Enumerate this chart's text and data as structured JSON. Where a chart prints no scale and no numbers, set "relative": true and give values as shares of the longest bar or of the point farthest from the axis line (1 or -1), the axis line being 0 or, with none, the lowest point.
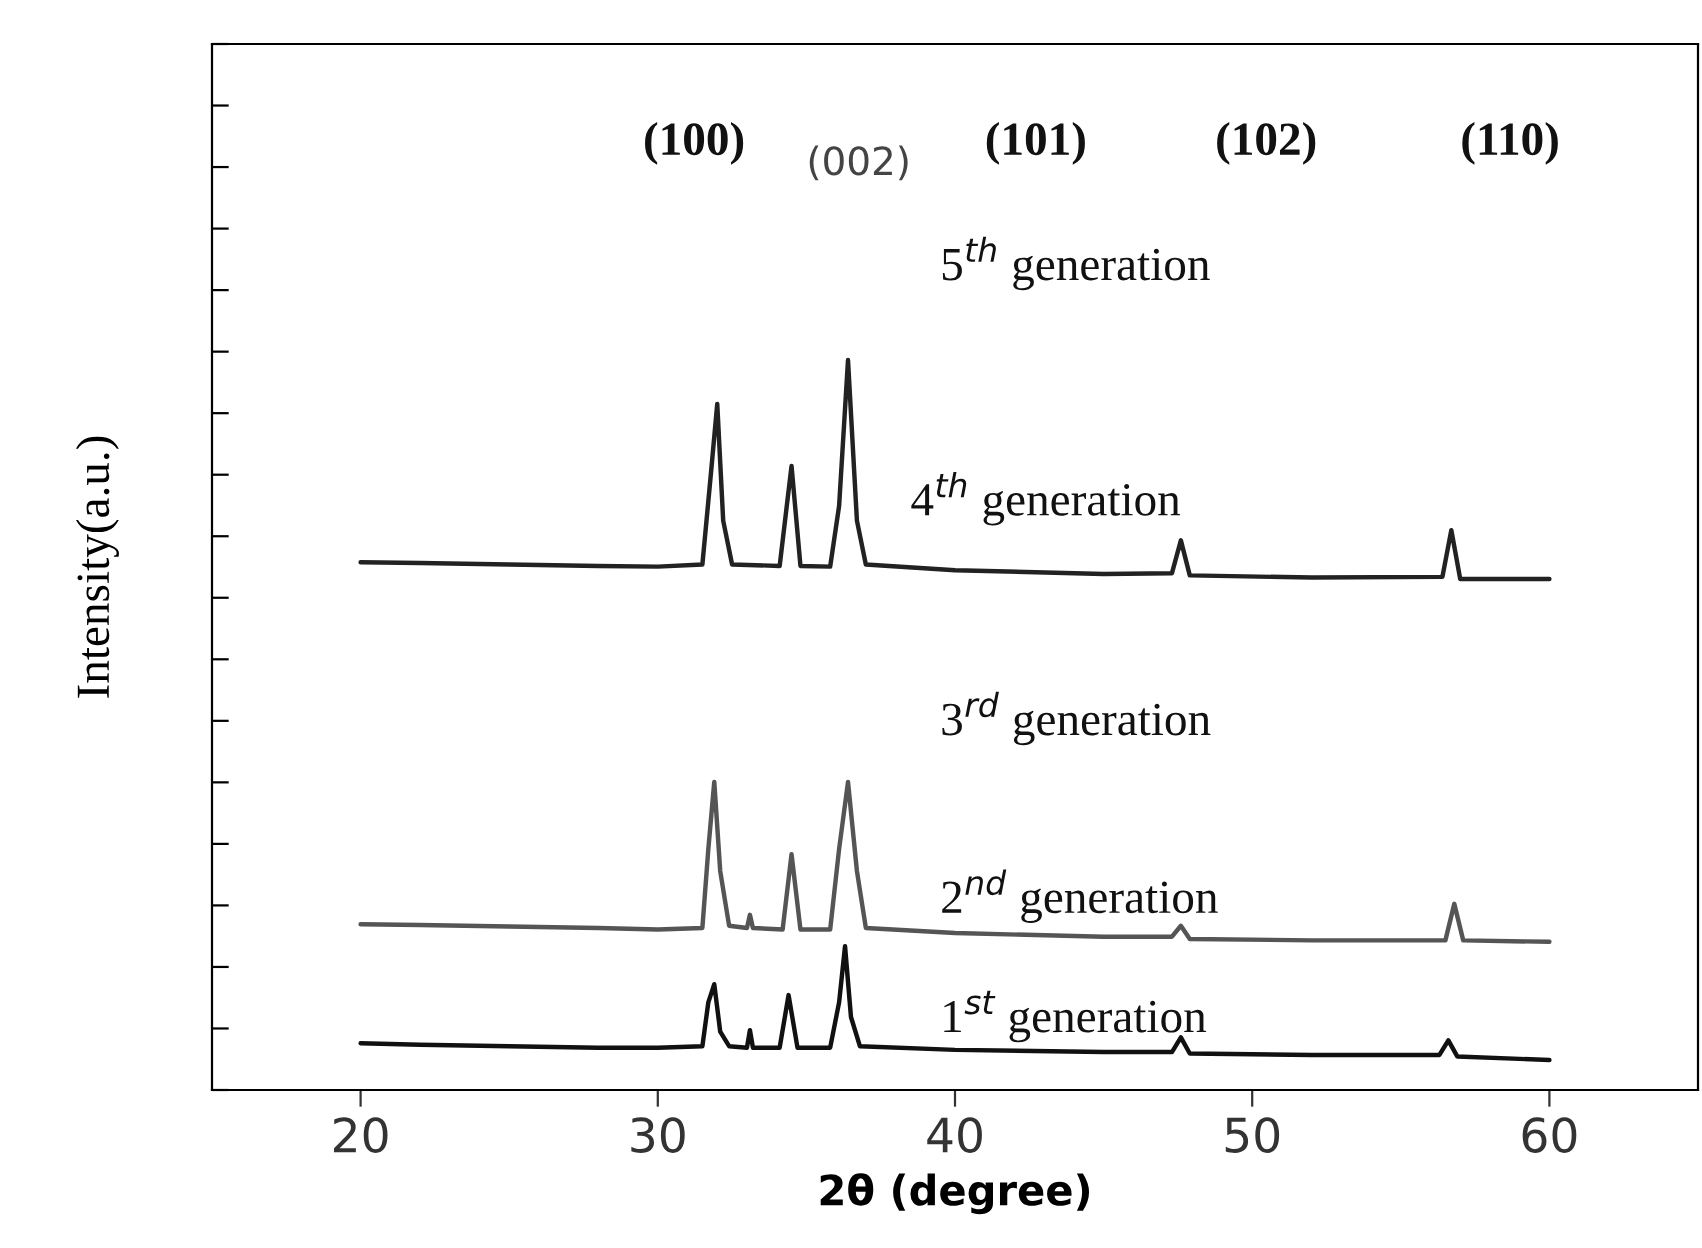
{
  "chart_data": {
    "type": "line",
    "relative": true,
    "xlabel": "2θ (degree)",
    "ylabel": "Intensity(a.u.)",
    "xlim": [
      15,
      65
    ],
    "xticks": [
      20,
      30,
      40,
      50,
      60
    ],
    "tick_labels": "x",
    "grid": false,
    "legend": false,
    "marker": "none",
    "line_style": "solid",
    "annotations": [
      "(100)",
      "(002)",
      "(101)",
      "(102)",
      "(110)",
      "5$^{th}$ generation",
      "4$^{th}$ generation",
      "3$^{rd}$ generation",
      "2$^{nd}$ generation",
      "1$^{st}$ generation"
    ],
    "series": [
      {
        "color": "#111111",
        "x": [
          20,
          22,
          25,
          28,
          30,
          31.5,
          31.7,
          31.9,
          32.1,
          32.4,
          33.0,
          33.1,
          33.2,
          34.1,
          34.4,
          34.7,
          35.8,
          36.1,
          36.3,
          36.5,
          36.8,
          40,
          45,
          47.3,
          47.6,
          47.9,
          52,
          56.3,
          56.6,
          56.9,
          60
        ],
        "values": [
          0.064,
          0.062,
          0.06,
          0.058,
          0.058,
          0.06,
          0.12,
          0.145,
          0.08,
          0.06,
          0.058,
          0.082,
          0.058,
          0.058,
          0.13,
          0.058,
          0.058,
          0.12,
          0.197,
          0.1,
          0.06,
          0.055,
          0.052,
          0.052,
          0.072,
          0.05,
          0.048,
          0.048,
          0.068,
          0.046,
          0.041
        ]
      },
      {
        "color": "#555555",
        "x": [
          20,
          22,
          25,
          28,
          30,
          31.5,
          31.7,
          31.9,
          32.1,
          32.4,
          33.0,
          33.1,
          33.2,
          34.2,
          34.5,
          34.8,
          35.8,
          36.1,
          36.4,
          36.7,
          37.0,
          40,
          45,
          47.3,
          47.6,
          47.9,
          52,
          56.5,
          56.8,
          57.1,
          60
        ],
        "values": [
          0.227,
          0.226,
          0.224,
          0.222,
          0.22,
          0.222,
          0.33,
          0.422,
          0.3,
          0.225,
          0.222,
          0.24,
          0.222,
          0.22,
          0.323,
          0.22,
          0.22,
          0.33,
          0.422,
          0.3,
          0.222,
          0.215,
          0.21,
          0.21,
          0.225,
          0.207,
          0.205,
          0.205,
          0.255,
          0.205,
          0.203
        ]
      },
      {
        "color": "#222222",
        "x": [
          20,
          22,
          25,
          28,
          30,
          31.5,
          31.8,
          32.0,
          32.2,
          32.5,
          34.1,
          34.5,
          34.8,
          35.8,
          36.1,
          36.4,
          36.7,
          37.0,
          40,
          45,
          47.3,
          47.6,
          47.9,
          52,
          56.4,
          56.7,
          57.0,
          60
        ],
        "values": [
          0.723,
          0.722,
          0.72,
          0.718,
          0.717,
          0.72,
          0.85,
          0.94,
          0.78,
          0.72,
          0.718,
          0.855,
          0.718,
          0.717,
          0.8,
          1.0,
          0.78,
          0.72,
          0.712,
          0.707,
          0.708,
          0.753,
          0.705,
          0.702,
          0.703,
          0.767,
          0.7,
          0.7
        ]
      }
    ]
  }
}
